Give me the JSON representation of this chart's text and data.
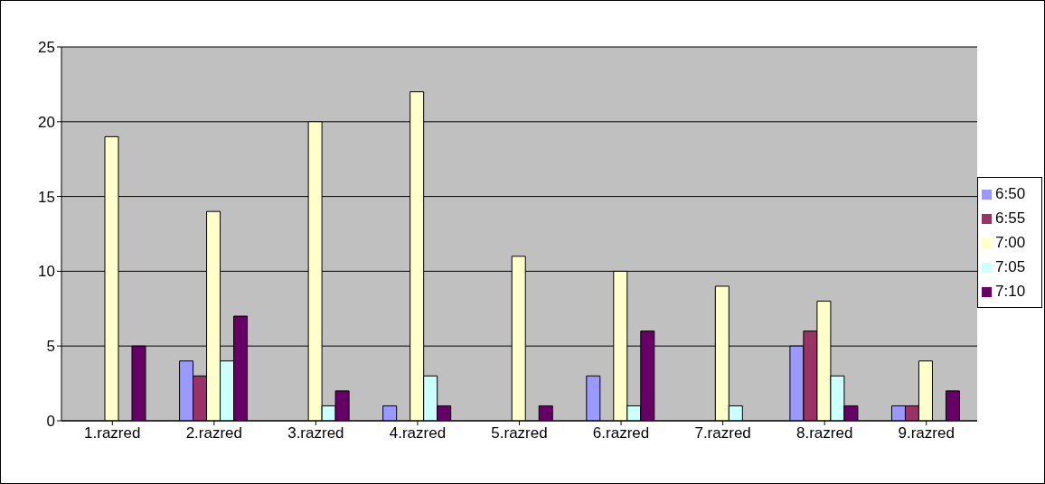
{
  "chart_data": {
    "type": "bar",
    "categories": [
      "1.razred",
      "2.razred",
      "3.razred",
      "4.razred",
      "5.razred",
      "6.razred",
      "7.razred",
      "8.razred",
      "9.razred"
    ],
    "series": [
      {
        "name": "6:50",
        "color": "#9999ff",
        "values": [
          0,
          4,
          0,
          1,
          0,
          3,
          0,
          5,
          1
        ]
      },
      {
        "name": "6:55",
        "color": "#993366",
        "values": [
          0,
          3,
          0,
          0,
          0,
          0,
          0,
          6,
          1
        ]
      },
      {
        "name": "7:00",
        "color": "#ffffcc",
        "values": [
          19,
          14,
          20,
          22,
          11,
          10,
          9,
          8,
          4
        ]
      },
      {
        "name": "7:05",
        "color": "#ccffff",
        "values": [
          0,
          4,
          1,
          3,
          0,
          1,
          1,
          3,
          0
        ]
      },
      {
        "name": "7:10",
        "color": "#660066",
        "values": [
          5,
          7,
          2,
          1,
          1,
          6,
          0,
          1,
          2
        ]
      }
    ],
    "ylim": [
      0,
      25
    ],
    "yticks": [
      0,
      5,
      10,
      15,
      20,
      25
    ],
    "grid": "y",
    "legend": "right"
  }
}
